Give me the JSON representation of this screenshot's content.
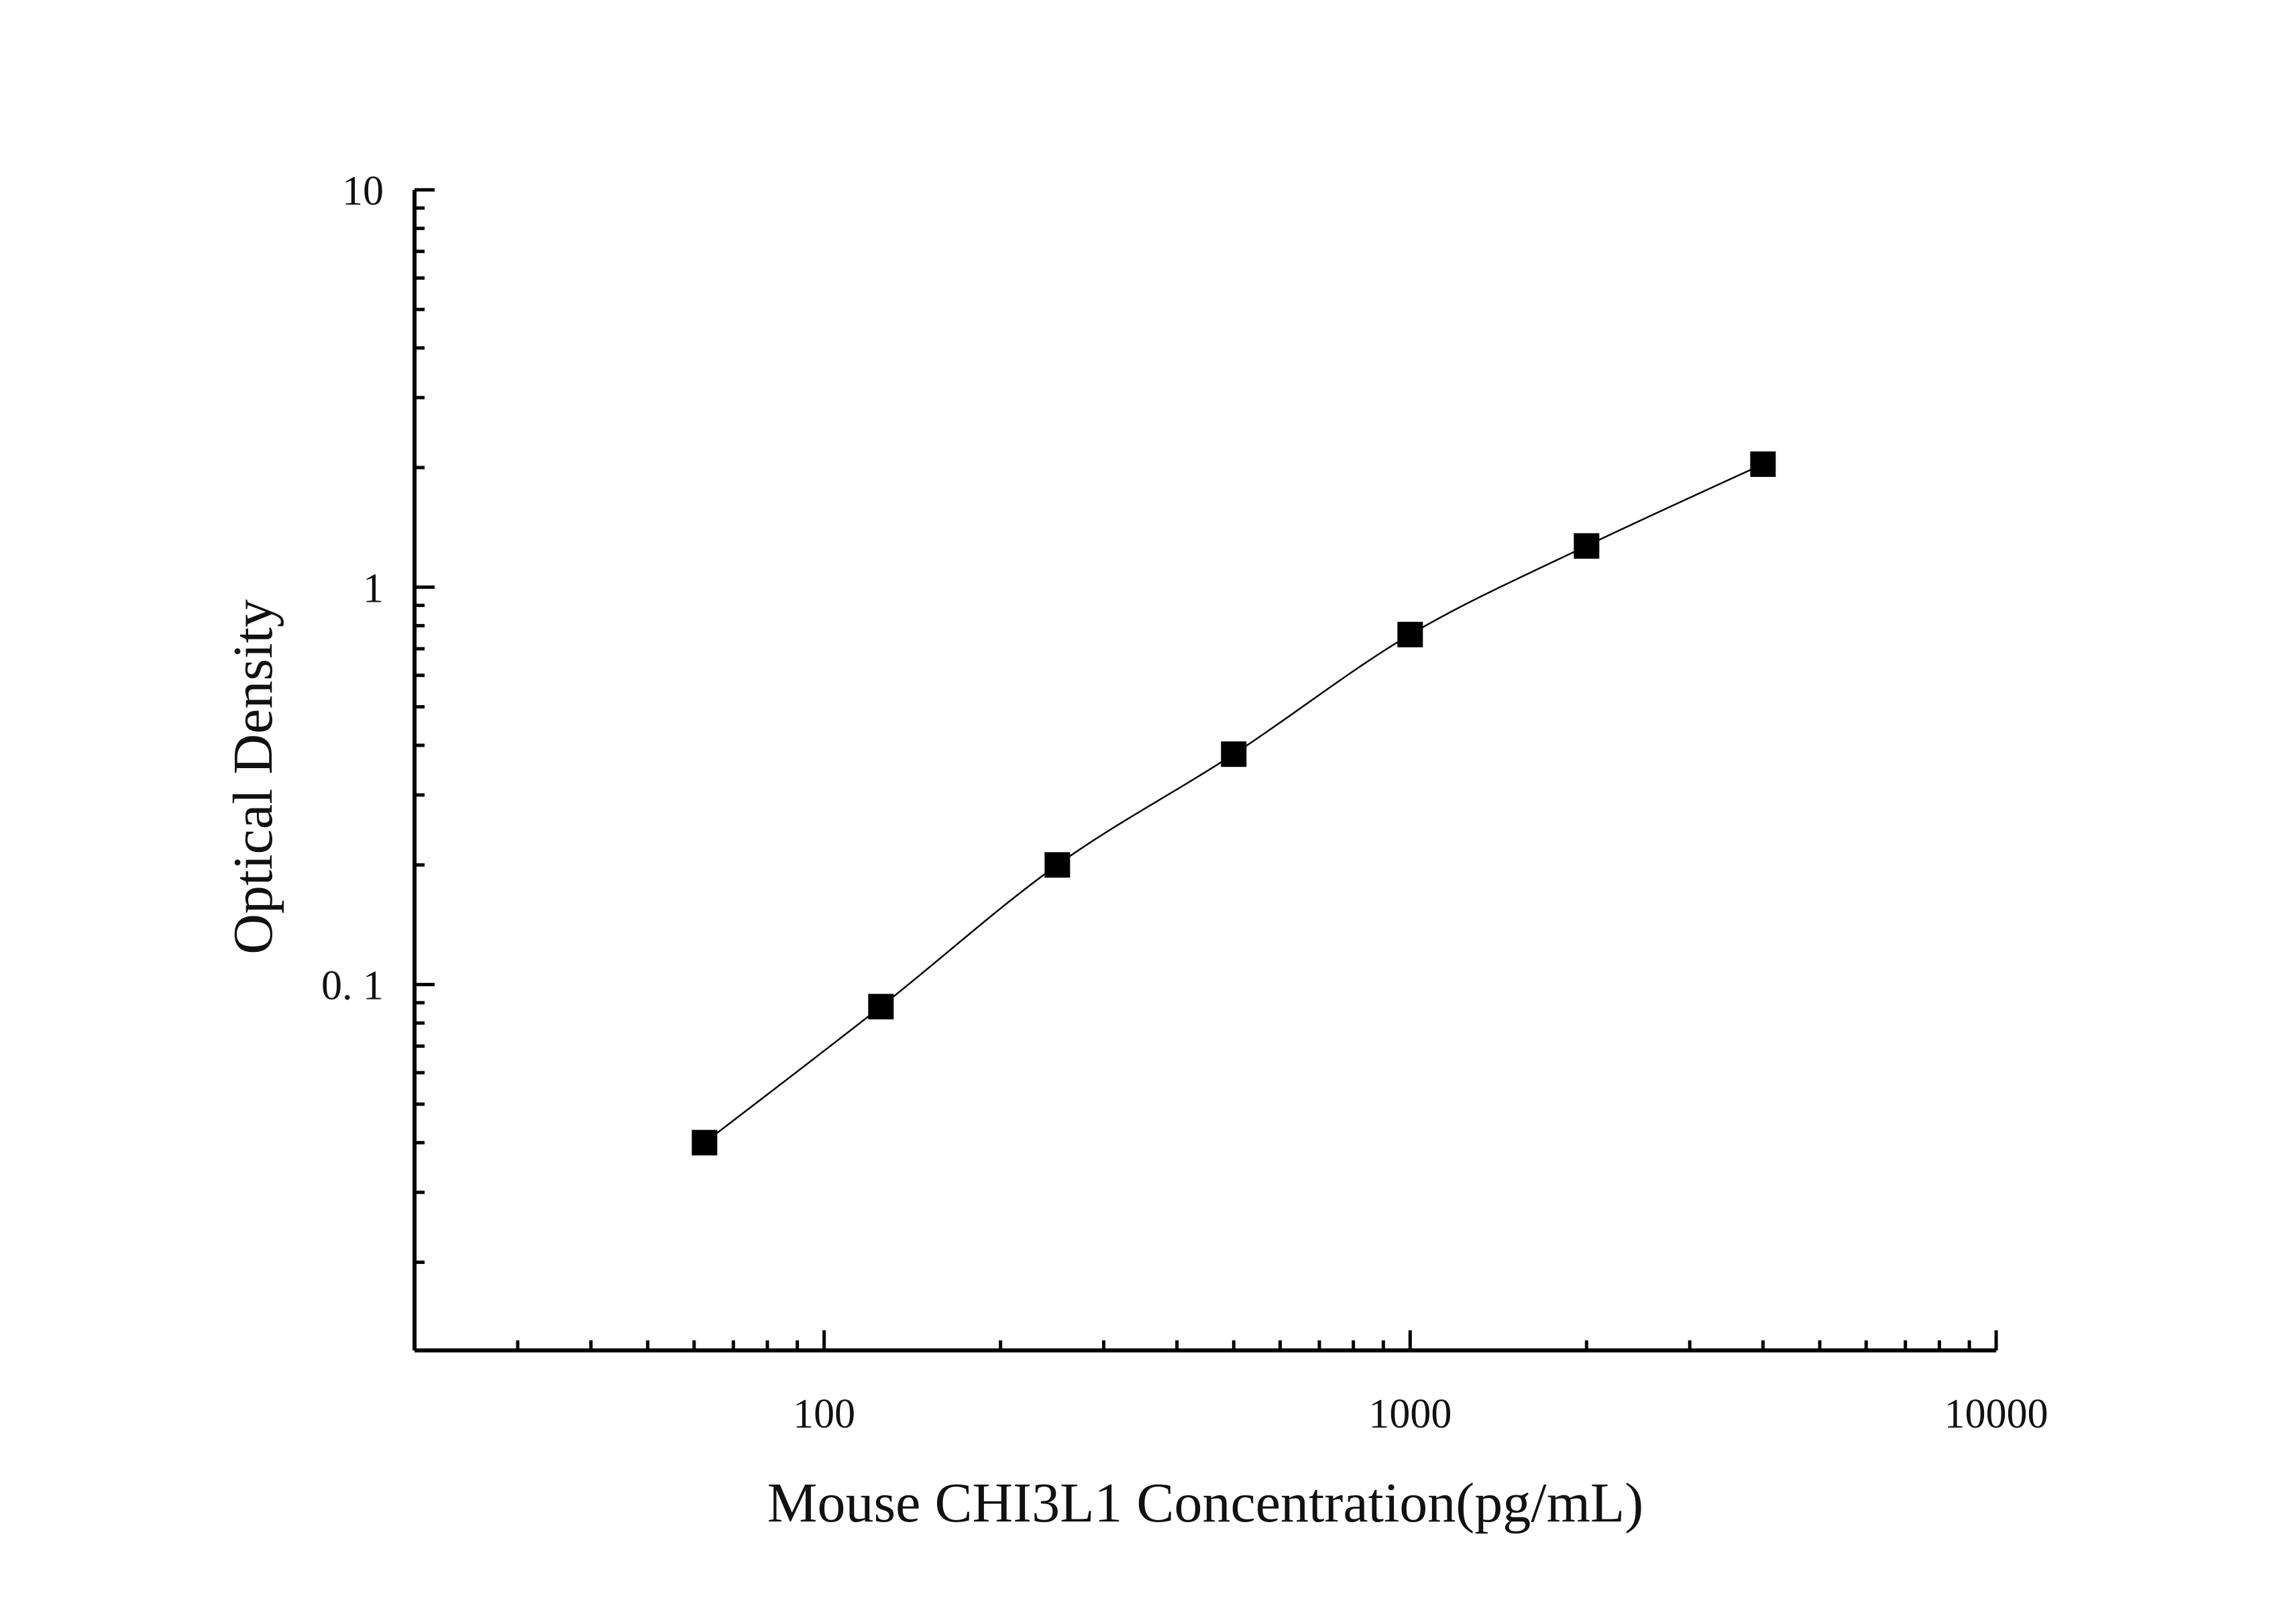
{
  "chart_data": {
    "type": "scatter",
    "title": "",
    "xlabel": "Mouse CHI3L1 Concentration(pg/mL)",
    "ylabel": "Optical Density",
    "x_scale": "log",
    "y_scale": "log",
    "xlim": [
      20,
      10000
    ],
    "ylim": [
      0.012,
      10
    ],
    "x_ticks": [
      {
        "value": 100,
        "label": "100"
      },
      {
        "value": 1000,
        "label": "1000"
      },
      {
        "value": 10000,
        "label": "10000"
      }
    ],
    "y_ticks": [
      {
        "value": 0.1,
        "label": "0. 1"
      },
      {
        "value": 1,
        "label": "1"
      },
      {
        "value": 10,
        "label": "10"
      }
    ],
    "grid": false,
    "legend": "none",
    "colors": {
      "marker": "#000000",
      "axis": "#000000",
      "curve": "#000000"
    },
    "series": [
      {
        "marker": "square",
        "fit_curve": true,
        "points": [
          {
            "x": 62.5,
            "y": 0.04
          },
          {
            "x": 125,
            "y": 0.088
          },
          {
            "x": 250,
            "y": 0.2
          },
          {
            "x": 500,
            "y": 0.38
          },
          {
            "x": 1000,
            "y": 0.76
          },
          {
            "x": 2000,
            "y": 1.27
          },
          {
            "x": 4000,
            "y": 2.04
          }
        ]
      }
    ]
  }
}
